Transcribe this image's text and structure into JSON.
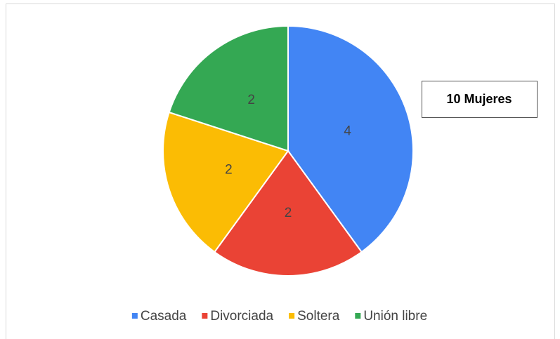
{
  "chart_data": {
    "type": "pie",
    "categories": [
      "Casada",
      "Divorciada",
      "Soltera",
      "Unión libre"
    ],
    "values": [
      4,
      2,
      2,
      2
    ],
    "colors": [
      "#4285f4",
      "#ea4335",
      "#fbbc04",
      "#34a853"
    ],
    "annotation": "10 Mujeres",
    "legend": "bottom"
  }
}
